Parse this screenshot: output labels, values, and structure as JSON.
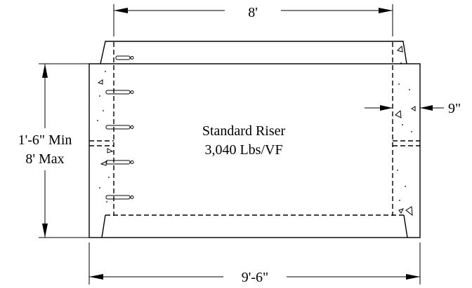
{
  "dimensions": {
    "top_width": "8'",
    "bottom_width": "9'-6\"",
    "height_min": "1'-6\" Min",
    "height_max": "8' Max",
    "wall_thickness": "9\""
  },
  "riser": {
    "name": "Standard Riser",
    "weight": "3,040 Lbs/VF"
  }
}
